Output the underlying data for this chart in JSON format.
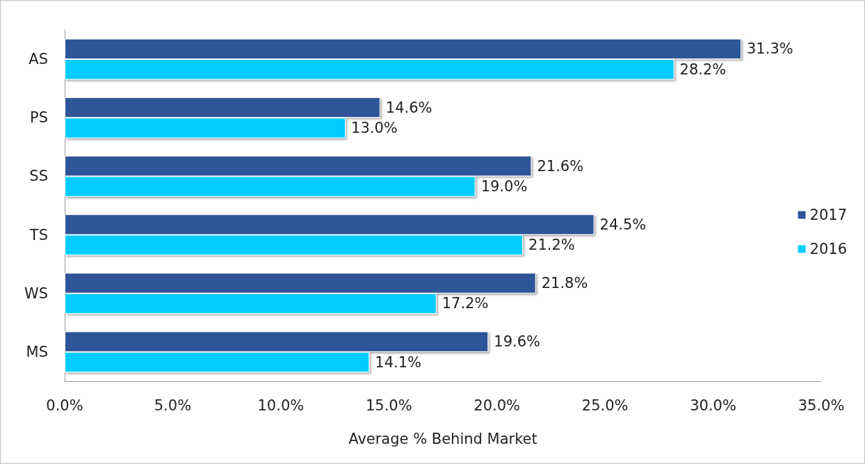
{
  "chart_data": {
    "type": "bar",
    "orientation": "horizontal",
    "xlabel": "Average % Behind Market",
    "categories": [
      "AS",
      "PS",
      "SS",
      "TS",
      "WS",
      "MS"
    ],
    "series": [
      {
        "name": "2017",
        "color": "#2f5597",
        "values": [
          31.3,
          14.6,
          21.6,
          24.5,
          21.8,
          19.6
        ],
        "value_labels": [
          "31.3%",
          "14.6%",
          "21.6%",
          "24.5%",
          "21.8%",
          "19.6%"
        ]
      },
      {
        "name": "2016",
        "color": "#00ccff",
        "values": [
          28.2,
          13.0,
          19.0,
          21.2,
          17.2,
          14.1
        ],
        "value_labels": [
          "28.2%",
          "13.0%",
          "19.0%",
          "21.2%",
          "17.2%",
          "14.1%"
        ]
      }
    ],
    "xlim": [
      0,
      35
    ],
    "xticks": [
      {
        "value": 0,
        "label": "0.0%"
      },
      {
        "value": 5,
        "label": "5.0%"
      },
      {
        "value": 10,
        "label": "10.0%"
      },
      {
        "value": 15,
        "label": "15.0%"
      },
      {
        "value": 20,
        "label": "20.0%"
      },
      {
        "value": 25,
        "label": "25.0%"
      },
      {
        "value": 30,
        "label": "30.0%"
      },
      {
        "value": 35,
        "label": "35.0%"
      }
    ],
    "grid": false,
    "legend": "right"
  }
}
